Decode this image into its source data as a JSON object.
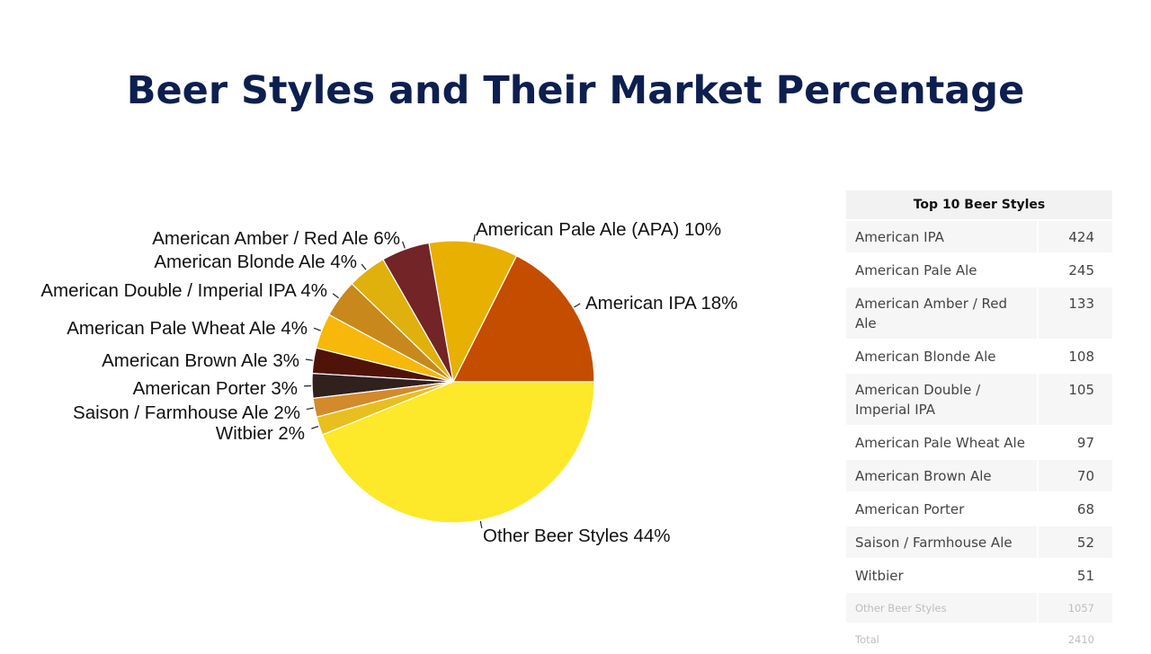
{
  "title": "Beer Styles and Their Market Percentage",
  "chart_data": {
    "type": "pie",
    "slices": [
      {
        "label": "American IPA 18%",
        "value": 424,
        "color": "#c44d00"
      },
      {
        "label": "American Pale Ale (APA) 10%",
        "value": 245,
        "color": "#e8b000"
      },
      {
        "label": "American Amber / Red Ale 6%",
        "value": 133,
        "color": "#722427"
      },
      {
        "label": "American Blonde Ale 4%",
        "value": 108,
        "color": "#e0b10c"
      },
      {
        "label": "American Double / Imperial IPA 4%",
        "value": 105,
        "color": "#c8881b"
      },
      {
        "label": "American Pale Wheat Ale 4%",
        "value": 97,
        "color": "#f7b80b"
      },
      {
        "label": "American Brown Ale 3%",
        "value": 70,
        "color": "#4f1309"
      },
      {
        "label": "American Porter 3%",
        "value": 68,
        "color": "#30201e"
      },
      {
        "label": "Saison / Farmhouse Ale 2%",
        "value": 52,
        "color": "#d28a2a"
      },
      {
        "label": "Witbier 2%",
        "value": 51,
        "color": "#e8bf1e"
      },
      {
        "label": "Other Beer Styles 44%",
        "value": 1057,
        "color": "#fde829"
      }
    ]
  },
  "table": {
    "header": "Top 10 Beer Styles",
    "rows": [
      {
        "name": "American IPA",
        "count": "424"
      },
      {
        "name": "American Pale Ale",
        "count": "245"
      },
      {
        "name": "American Amber / Red Ale",
        "count": "133"
      },
      {
        "name": "American Blonde Ale",
        "count": "108"
      },
      {
        "name": "American Double / Imperial IPA",
        "count": "105"
      },
      {
        "name": "American Pale Wheat Ale",
        "count": "97"
      },
      {
        "name": "American Brown Ale",
        "count": "70"
      },
      {
        "name": "American Porter",
        "count": "68"
      },
      {
        "name": "Saison / Farmhouse Ale",
        "count": "52"
      },
      {
        "name": "Witbier",
        "count": "51"
      }
    ],
    "extra_rows": [
      {
        "name": "Other Beer Styles",
        "count": "1057"
      },
      {
        "name": "Total",
        "count": "2410"
      }
    ]
  }
}
